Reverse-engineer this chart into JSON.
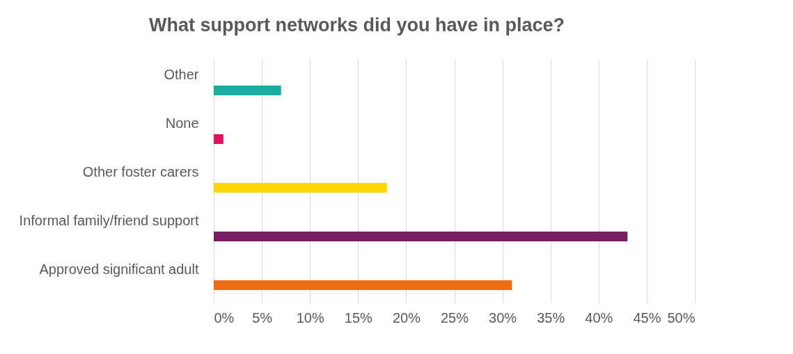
{
  "chart_data": {
    "type": "bar",
    "orientation": "horizontal",
    "title": "What support networks did you have in place?",
    "categories": [
      "Other",
      "None",
      "Other foster carers",
      "Informal family/friend support",
      "Approved significant adult"
    ],
    "values": [
      7,
      1,
      18,
      43,
      31
    ],
    "colors": [
      "#1aada0",
      "#e0115f",
      "#ffd700",
      "#7b1c64",
      "#ef6c0f"
    ],
    "xlim": [
      0,
      50
    ],
    "xticks": [
      {
        "value": 0,
        "label": "0%"
      },
      {
        "value": 5,
        "label": "5%"
      },
      {
        "value": 10,
        "label": "10%"
      },
      {
        "value": 15,
        "label": "15%"
      },
      {
        "value": 20,
        "label": "20%"
      },
      {
        "value": 25,
        "label": "25%"
      },
      {
        "value": 30,
        "label": "30%"
      },
      {
        "value": 35,
        "label": "35%"
      },
      {
        "value": 40,
        "label": "40%"
      },
      {
        "value": 45,
        "label": "45%"
      },
      {
        "value": 50,
        "label": "50%"
      }
    ],
    "grid": "x"
  }
}
